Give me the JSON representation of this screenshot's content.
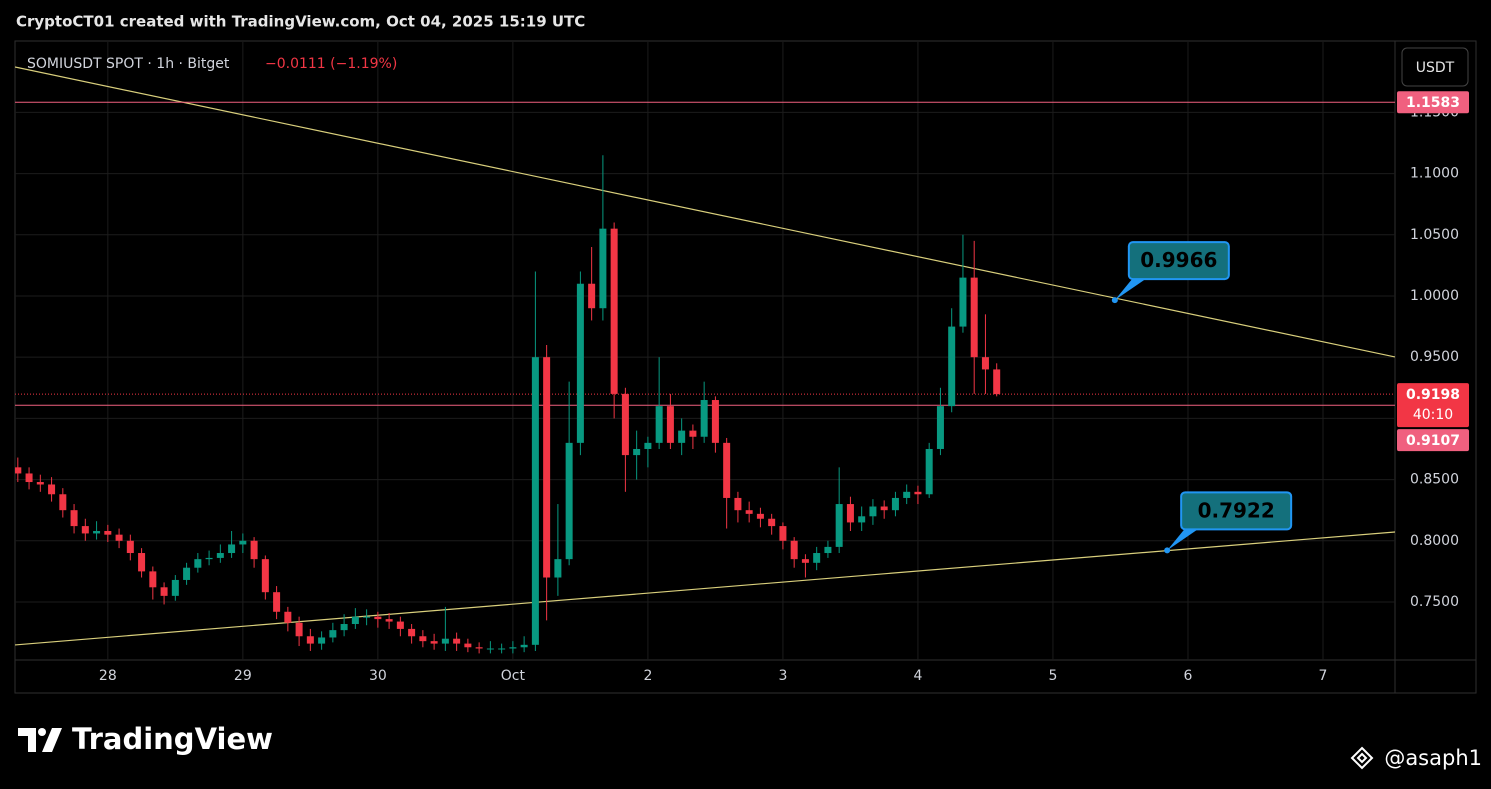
{
  "header": {
    "title": "CryptoCT01 created with TradingView.com, Oct 04, 2025 15:19 UTC"
  },
  "chart_data": {
    "type": "candlestick",
    "symbol": "SOMIUSDT SPOT · 1h · Bitget",
    "change": "−0.0111 (−1.19%)",
    "currency": "USDT",
    "x": [
      -16,
      -14,
      -12,
      -10,
      -8,
      -6,
      -4,
      -2,
      0,
      2,
      4,
      6,
      8,
      10,
      12,
      14,
      16,
      18,
      20,
      22,
      24,
      26,
      28,
      30,
      32,
      34,
      36,
      38,
      40,
      42,
      44,
      46,
      48,
      50,
      52,
      54,
      56,
      58,
      60,
      62,
      64,
      66,
      68,
      70,
      72,
      74,
      76,
      78,
      80,
      82,
      84,
      86,
      88,
      90,
      92,
      94,
      96,
      98,
      100,
      102,
      104,
      106,
      108,
      110,
      112,
      114,
      116,
      118,
      120,
      122,
      124,
      126,
      128,
      130,
      132,
      134,
      136,
      138,
      140,
      142,
      144,
      146,
      148,
      150,
      152,
      154,
      156,
      158
    ],
    "open": [
      0.86,
      0.855,
      0.848,
      0.846,
      0.838,
      0.825,
      0.812,
      0.806,
      0.808,
      0.805,
      0.8,
      0.79,
      0.775,
      0.762,
      0.755,
      0.768,
      0.778,
      0.785,
      0.786,
      0.79,
      0.797,
      0.8,
      0.785,
      0.758,
      0.742,
      0.733,
      0.722,
      0.716,
      0.721,
      0.727,
      0.732,
      0.738,
      0.738,
      0.736,
      0.734,
      0.728,
      0.722,
      0.718,
      0.716,
      0.72,
      0.716,
      0.713,
      0.712,
      0.712,
      0.712,
      0.713,
      0.715,
      0.95,
      0.77,
      0.785,
      0.88,
      1.01,
      0.99,
      1.055,
      0.92,
      0.87,
      0.875,
      0.88,
      0.91,
      0.88,
      0.89,
      0.885,
      0.915,
      0.88,
      0.835,
      0.825,
      0.822,
      0.818,
      0.812,
      0.8,
      0.785,
      0.782,
      0.79,
      0.795,
      0.83,
      0.815,
      0.82,
      0.828,
      0.825,
      0.835,
      0.84,
      0.838,
      0.875,
      0.91,
      0.975,
      1.015,
      0.95,
      0.94
    ],
    "high": [
      0.868,
      0.86,
      0.854,
      0.852,
      0.843,
      0.83,
      0.818,
      0.816,
      0.813,
      0.81,
      0.805,
      0.794,
      0.779,
      0.766,
      0.772,
      0.782,
      0.79,
      0.792,
      0.797,
      0.808,
      0.806,
      0.803,
      0.788,
      0.763,
      0.746,
      0.738,
      0.728,
      0.726,
      0.733,
      0.74,
      0.745,
      0.744,
      0.742,
      0.741,
      0.738,
      0.732,
      0.727,
      0.724,
      0.746,
      0.725,
      0.72,
      0.717,
      0.718,
      0.716,
      0.718,
      0.722,
      1.02,
      0.96,
      0.83,
      0.93,
      1.02,
      1.04,
      1.115,
      1.06,
      0.925,
      0.89,
      0.885,
      0.95,
      0.92,
      0.9,
      0.895,
      0.93,
      0.918,
      0.884,
      0.84,
      0.832,
      0.827,
      0.822,
      0.815,
      0.803,
      0.789,
      0.795,
      0.8,
      0.86,
      0.836,
      0.828,
      0.834,
      0.833,
      0.84,
      0.846,
      0.845,
      0.88,
      0.925,
      0.99,
      1.05,
      1.045,
      0.985,
      0.945
    ],
    "low": [
      0.848,
      0.842,
      0.84,
      0.832,
      0.819,
      0.806,
      0.8,
      0.801,
      0.799,
      0.794,
      0.784,
      0.77,
      0.752,
      0.748,
      0.751,
      0.764,
      0.774,
      0.78,
      0.782,
      0.786,
      0.79,
      0.778,
      0.752,
      0.736,
      0.726,
      0.714,
      0.71,
      0.711,
      0.717,
      0.722,
      0.728,
      0.731,
      0.729,
      0.728,
      0.722,
      0.716,
      0.713,
      0.711,
      0.71,
      0.71,
      0.709,
      0.708,
      0.708,
      0.708,
      0.708,
      0.709,
      0.71,
      0.735,
      0.755,
      0.78,
      0.87,
      0.98,
      0.98,
      0.9,
      0.84,
      0.85,
      0.86,
      0.875,
      0.875,
      0.87,
      0.875,
      0.88,
      0.872,
      0.81,
      0.815,
      0.815,
      0.811,
      0.805,
      0.793,
      0.778,
      0.77,
      0.776,
      0.786,
      0.79,
      0.808,
      0.808,
      0.813,
      0.818,
      0.82,
      0.83,
      0.83,
      0.835,
      0.87,
      0.905,
      0.97,
      0.92,
      0.92,
      0.918
    ],
    "close": [
      0.855,
      0.848,
      0.846,
      0.838,
      0.825,
      0.812,
      0.806,
      0.808,
      0.805,
      0.8,
      0.79,
      0.775,
      0.762,
      0.755,
      0.768,
      0.778,
      0.785,
      0.786,
      0.79,
      0.797,
      0.8,
      0.785,
      0.758,
      0.742,
      0.733,
      0.722,
      0.716,
      0.721,
      0.727,
      0.732,
      0.738,
      0.738,
      0.736,
      0.734,
      0.728,
      0.722,
      0.718,
      0.716,
      0.72,
      0.716,
      0.713,
      0.712,
      0.712,
      0.712,
      0.713,
      0.715,
      0.95,
      0.77,
      0.785,
      0.88,
      1.01,
      0.99,
      1.055,
      0.92,
      0.87,
      0.875,
      0.88,
      0.91,
      0.88,
      0.89,
      0.885,
      0.915,
      0.88,
      0.835,
      0.825,
      0.822,
      0.818,
      0.812,
      0.8,
      0.785,
      0.782,
      0.79,
      0.795,
      0.83,
      0.815,
      0.82,
      0.828,
      0.825,
      0.835,
      0.84,
      0.838,
      0.875,
      0.91,
      0.975,
      1.015,
      0.95,
      0.94,
      0.9198
    ],
    "up_color": "#089981",
    "down_color": "#f23645",
    "xlim": [
      -16.5,
      228.8
    ],
    "xticks": [
      {
        "value": 0,
        "label": "28"
      },
      {
        "value": 24,
        "label": "29"
      },
      {
        "value": 48,
        "label": "30"
      },
      {
        "value": 72,
        "label": "Oct"
      },
      {
        "value": 96,
        "label": "2"
      },
      {
        "value": 120,
        "label": "3"
      },
      {
        "value": 144,
        "label": "4"
      },
      {
        "value": 168,
        "label": "5"
      },
      {
        "value": 192,
        "label": "6"
      },
      {
        "value": 216,
        "label": "7"
      }
    ],
    "ylim": [
      0.7026,
      1.2075
    ],
    "yticks": [
      {
        "value": 0.75,
        "label": "0.7500"
      },
      {
        "value": 0.8,
        "label": "0.8000"
      },
      {
        "value": 0.85,
        "label": "0.8500"
      },
      {
        "value": 0.9,
        "label": "0.9000"
      },
      {
        "value": 0.95,
        "label": "0.9500"
      },
      {
        "value": 1,
        "label": "1.0000"
      },
      {
        "value": 1.05,
        "label": "1.0500"
      },
      {
        "value": 1.1,
        "label": "1.1000"
      },
      {
        "value": 1.15,
        "label": "1.1500"
      }
    ],
    "grid": true,
    "price_lines": [
      {
        "value": 1.1583,
        "color": "#f0607f"
      },
      {
        "value": 0.9107,
        "color": "#f0607f"
      }
    ],
    "last_price": {
      "value": 0.9198,
      "countdown": "40:10",
      "color": "#f23645"
    },
    "trend_lines": [
      {
        "x": [
          -16.5,
          228.8
        ],
        "y": [
          1.1871,
          0.9502
        ],
        "color": "#d9cf7c"
      },
      {
        "x": [
          -16.5,
          228.8
        ],
        "y": [
          0.7149,
          0.8072
        ],
        "color": "#d9cf7c"
      }
    ],
    "callouts": [
      {
        "x": 179,
        "value": 0.9966
      },
      {
        "x": 188.3,
        "value": 0.7922
      }
    ]
  },
  "footer": {
    "logo": "TradingView",
    "author": "@asaph1"
  }
}
